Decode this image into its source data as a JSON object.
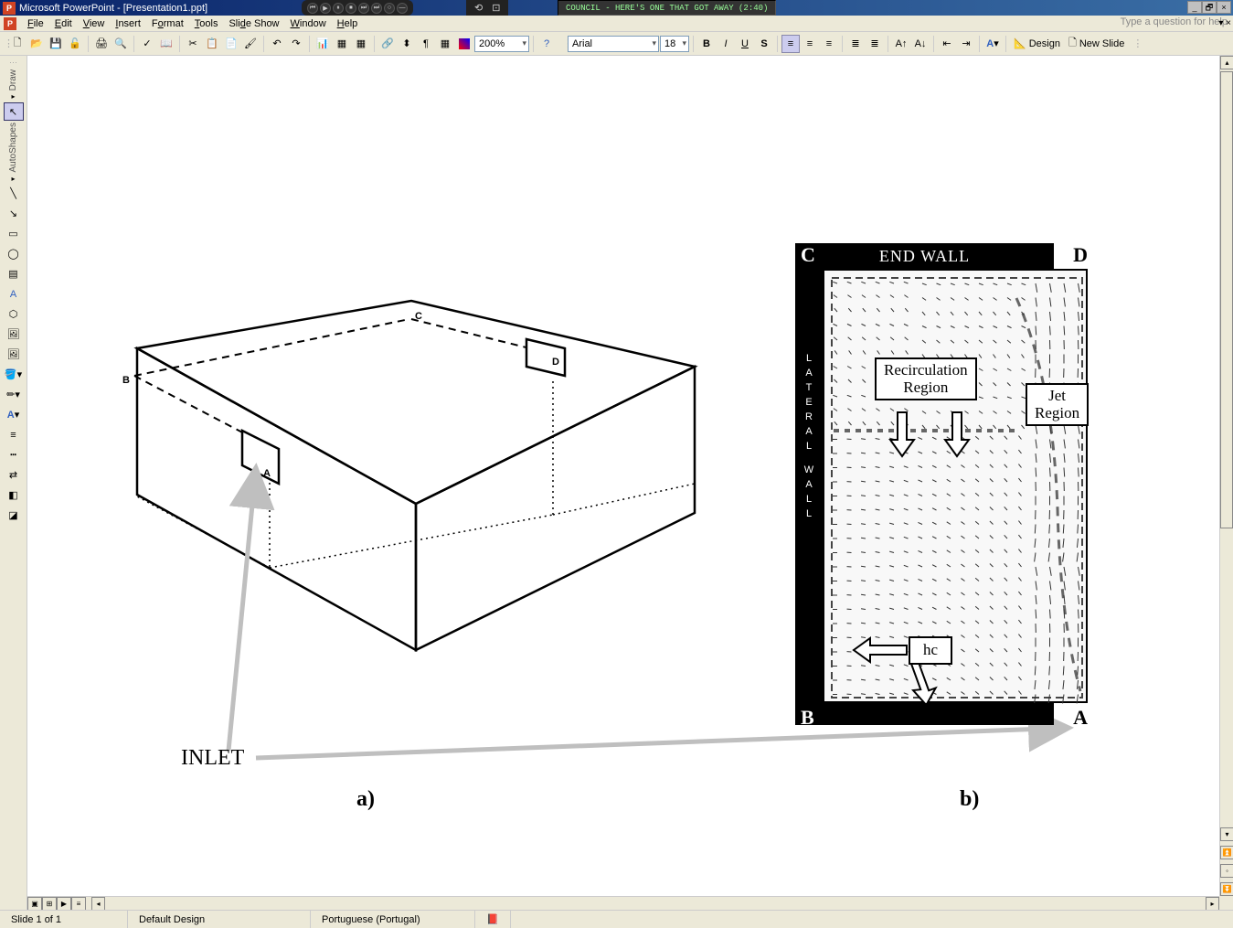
{
  "titlebar": {
    "app": "Microsoft PowerPoint",
    "doc": "[Presentation1.ppt]",
    "task_item": "COUNCIL - HERE'S ONE THAT GOT AWAY (2:40)"
  },
  "menubar": {
    "file": "File",
    "edit": "Edit",
    "view": "View",
    "insert": "Insert",
    "format": "Format",
    "tools": "Tools",
    "slideshow": "Slide Show",
    "window": "Window",
    "help": "Help",
    "help_prompt": "Type a question for help"
  },
  "toolbar": {
    "zoom": "200%",
    "font": "Arial",
    "fontsize": "18",
    "design_label": "Design",
    "newslide_label": "New Slide"
  },
  "left_toolbar": {
    "draw": "Draw",
    "autoshapes": "AutoShapes"
  },
  "statusbar": {
    "slide": "Slide 1 of 1",
    "template": "Default Design",
    "lang": "Portuguese (Portugal)"
  },
  "slide": {
    "inlet": "INLET",
    "label_a": "a)",
    "label_b": "b)",
    "box_points": {
      "A": "A",
      "B": "B",
      "C": "C",
      "D": "D"
    },
    "rpanel": {
      "top": "END WALL",
      "left": "LATERAL  WALL",
      "recirc": "Recirculation\nRegion",
      "jet": "Jet\nRegion",
      "hc": "hc",
      "colors": {
        "bar": "#000000",
        "bg": "#f8f8f8",
        "box": "#ffffff"
      }
    },
    "arrow_color": "#bfbfbf",
    "line_color": "#000000"
  },
  "chart_style": {
    "font_family_serif": "Times New Roman",
    "font_family_sans": "Arial",
    "title_fontsize": 18,
    "label_fontsize": 17,
    "sublabel_fontsize": 24,
    "inlet_fontsize": 24,
    "line_width_solid": 2.5,
    "line_width_dashed": 2,
    "dash_pattern": "8,6",
    "dot_pattern": "2,4"
  }
}
